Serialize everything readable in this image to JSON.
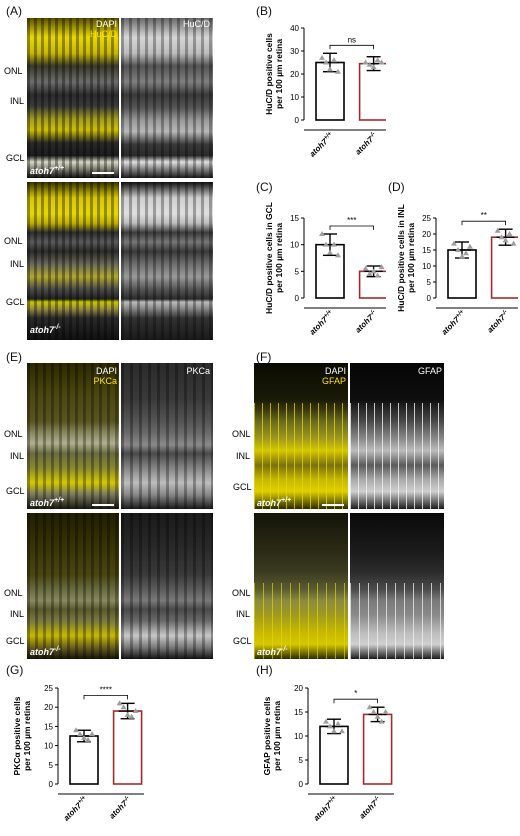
{
  "panel_letters": {
    "A": "(A)",
    "B": "(B)",
    "C": "(C)",
    "D": "(D)",
    "E": "(E)",
    "F": "(F)",
    "G": "(G)",
    "H": "(H)"
  },
  "layers": {
    "onl": "ONL",
    "inl": "INL",
    "gcl": "GCL"
  },
  "genotypes": {
    "wt": "atoh7+/+",
    "ko": "atoh7-/-"
  },
  "micro_A": {
    "ch1_line1": "DAPI",
    "ch1_line2": "HuC/D",
    "ch2": "HuC/D"
  },
  "micro_E": {
    "ch1_line1": "DAPI",
    "ch1_line2": "PKCa",
    "ch2": "PKCa"
  },
  "micro_F": {
    "ch1_line1": "DAPI",
    "ch1_line2": "GFAP",
    "ch2": "GFAP"
  },
  "colors": {
    "wt_bar": "#000000",
    "ko_bar": "#a52a2a",
    "point": "#9e9e9e",
    "merge": "#e6d800"
  },
  "chart_data": [
    {
      "id": "B",
      "type": "bar",
      "categories": [
        "atoh7+/+",
        "atoh7-/-"
      ],
      "values": [
        25,
        24.5
      ],
      "errors": [
        4,
        3
      ],
      "points": [
        [
          27,
          25,
          22,
          26,
          21
        ],
        [
          25,
          24,
          23,
          26,
          25
        ]
      ],
      "ylabel": "HuC/D positive cells\nper 100 µm retina",
      "ylim": [
        0,
        40
      ],
      "yticks": [
        0,
        10,
        20,
        30,
        40
      ],
      "significance": "ns"
    },
    {
      "id": "C",
      "type": "bar",
      "categories": [
        "atoh7+/+",
        "atoh7-/-"
      ],
      "values": [
        10,
        5
      ],
      "errors": [
        2,
        1
      ],
      "points": [
        [
          12,
          10,
          8.5,
          10,
          8
        ],
        [
          5.5,
          4.5,
          5,
          4.2,
          5.8
        ]
      ],
      "ylabel": "HuC/D positive cells in GCL\nper 100 µm retina",
      "ylim": [
        0,
        15
      ],
      "yticks": [
        0,
        5,
        10,
        15
      ],
      "significance": "***"
    },
    {
      "id": "D",
      "type": "bar",
      "categories": [
        "atoh7+/+",
        "atoh7-/-"
      ],
      "values": [
        15,
        19
      ],
      "errors": [
        2.5,
        2.5
      ],
      "points": [
        [
          17,
          15,
          13,
          14,
          16
        ],
        [
          21,
          19,
          18,
          20,
          17
        ]
      ],
      "ylabel": "HuC/D positive cells in INL\nper 100 µm retina",
      "ylim": [
        0,
        25
      ],
      "yticks": [
        0,
        5,
        10,
        15,
        20,
        25
      ],
      "significance": "**"
    },
    {
      "id": "G",
      "type": "bar",
      "categories": [
        "atoh7+/+",
        "atoh7-/-"
      ],
      "values": [
        12.5,
        19
      ],
      "errors": [
        1.5,
        2
      ],
      "points": [
        [
          14,
          13,
          12,
          11.5,
          13
        ],
        [
          21,
          20,
          18,
          17.5,
          19
        ]
      ],
      "ylabel": "PKCα positive cells\nper 100 µm retina",
      "ylim": [
        0,
        25
      ],
      "yticks": [
        0,
        5,
        10,
        15,
        20,
        25
      ],
      "significance": "****"
    },
    {
      "id": "H",
      "type": "bar",
      "categories": [
        "atoh7+/+",
        "atoh7-/-"
      ],
      "values": [
        12,
        14.5
      ],
      "errors": [
        1.5,
        1.5
      ],
      "points": [
        [
          13,
          12,
          11,
          12.5,
          11
        ],
        [
          16,
          15,
          14,
          13,
          15
        ]
      ],
      "ylabel": "GFAP positive cells\nper 100 µm retina",
      "ylim": [
        0,
        20
      ],
      "yticks": [
        0,
        5,
        10,
        15,
        20
      ],
      "significance": "*"
    }
  ]
}
